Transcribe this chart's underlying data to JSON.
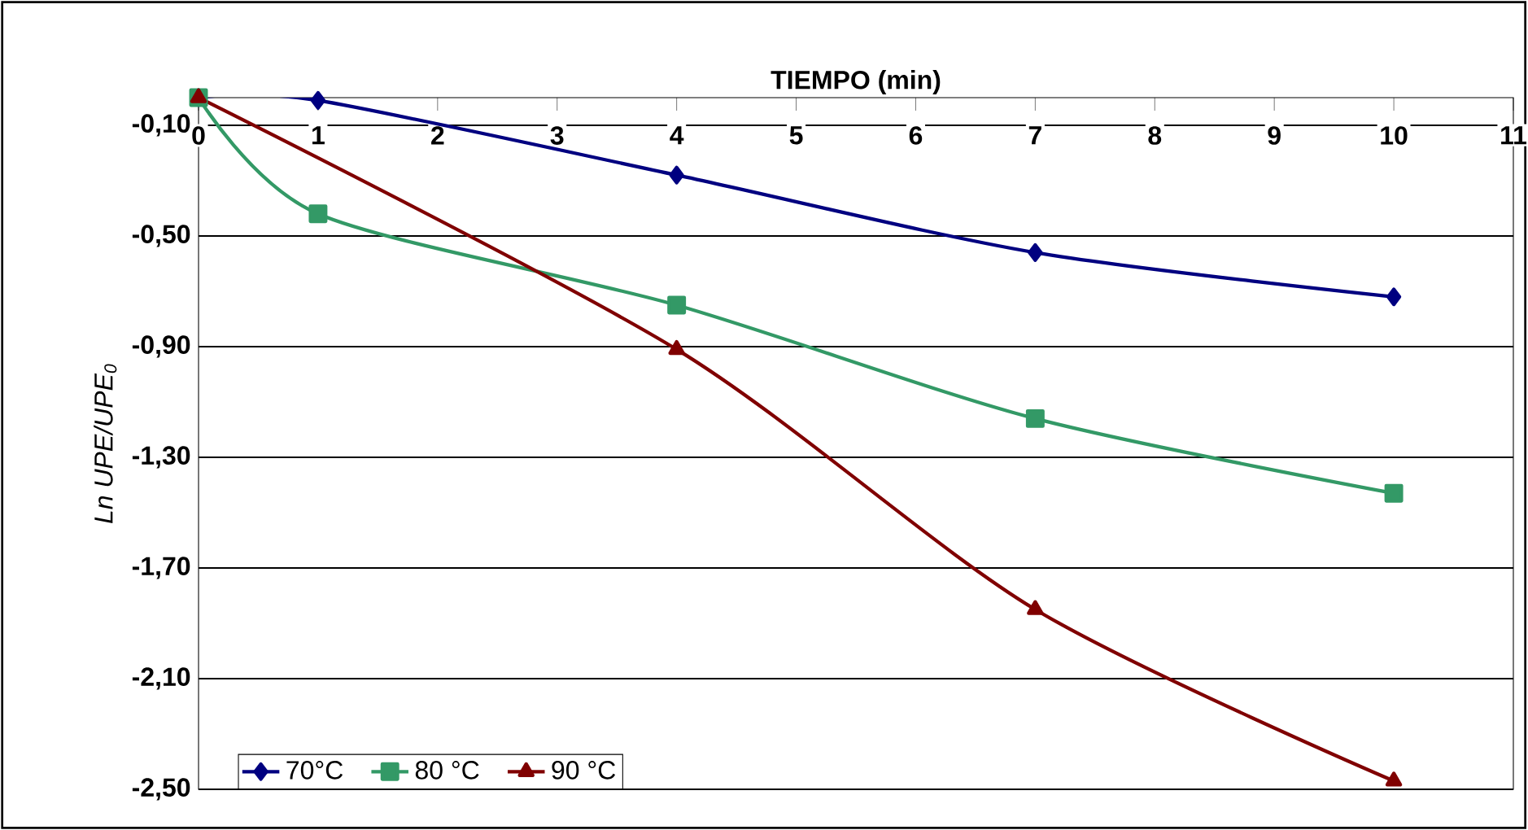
{
  "chart_data": {
    "type": "line",
    "xlabel": "TIEMPO (min)",
    "ylabel": "Ln UPE/UPE$_{0}$",
    "x": [
      0,
      1,
      4,
      7,
      10
    ],
    "series": [
      {
        "name": "70°C",
        "color": "#000080",
        "marker": "diamond",
        "values": [
          0.0,
          -0.01,
          -0.28,
          -0.56,
          -0.72
        ]
      },
      {
        "name": "80 °C",
        "color": "#339966",
        "marker": "square",
        "values": [
          0.0,
          -0.42,
          -0.75,
          -1.16,
          -1.43
        ]
      },
      {
        "name": "90 °C",
        "color": "#800000",
        "marker": "triangle",
        "values": [
          0.0,
          null,
          -0.91,
          -1.85,
          -2.47
        ]
      }
    ],
    "xlim": [
      0,
      11
    ],
    "ylim": [
      -2.5,
      0
    ],
    "xticks": [
      0,
      1,
      2,
      3,
      4,
      5,
      6,
      7,
      8,
      9,
      10,
      11
    ],
    "yticks": [
      {
        "value": -0.1,
        "label": "-0,10"
      },
      {
        "value": -0.5,
        "label": "-0,50"
      },
      {
        "value": -0.9,
        "label": "-0,90"
      },
      {
        "value": -1.3,
        "label": "-1,30"
      },
      {
        "value": -1.7,
        "label": "-1,70"
      },
      {
        "value": -2.1,
        "label": "-2,10"
      },
      {
        "value": -2.5,
        "label": "-2,50"
      }
    ],
    "grid": "y",
    "legend": "bottom left",
    "line_style": "solid"
  }
}
